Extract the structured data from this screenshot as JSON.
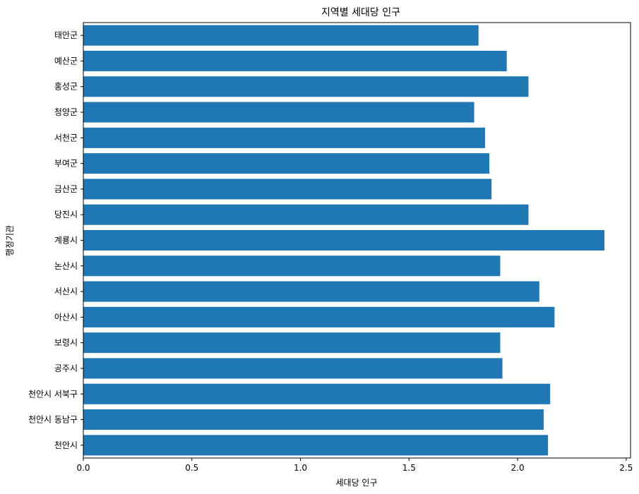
{
  "chart_data": {
    "type": "bar",
    "orientation": "horizontal",
    "title": "지역별 세대당 인구",
    "xlabel": "세대당 인구",
    "ylabel": "행정기관",
    "xlim": [
      0,
      2.52
    ],
    "xticks": [
      0.0,
      0.5,
      1.0,
      1.5,
      2.0,
      2.5
    ],
    "xtick_labels": [
      "0.0",
      "0.5",
      "1.0",
      "1.5",
      "2.0",
      "2.5"
    ],
    "grid": false,
    "bar_color": "#1f77b4",
    "categories": [
      "천안시",
      "천안시 동남구",
      "천안시 서북구",
      "공주시",
      "보령시",
      "아산시",
      "서산시",
      "논산시",
      "계룡시",
      "당진시",
      "금산군",
      "부여군",
      "서천군",
      "청양군",
      "홍성군",
      "예산군",
      "태안군"
    ],
    "values": [
      2.14,
      2.12,
      2.15,
      1.93,
      1.92,
      2.17,
      2.1,
      1.92,
      2.4,
      2.05,
      1.88,
      1.87,
      1.85,
      1.8,
      2.05,
      1.95,
      1.82
    ]
  }
}
